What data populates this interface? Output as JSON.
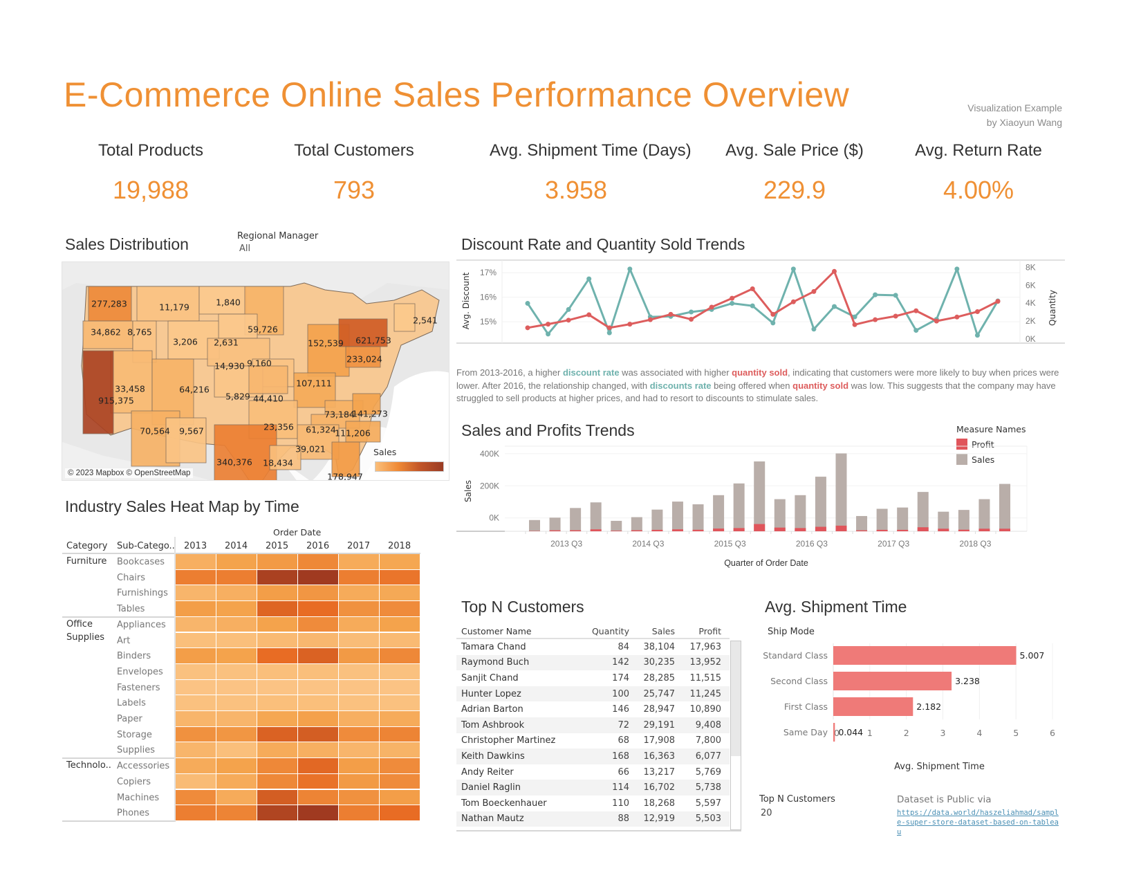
{
  "header": {
    "title": "E-Commerce Online Sales Performance Overview",
    "credit_line1": "Visualization Example",
    "credit_line2": "by Xiaoyun Wang"
  },
  "kpis": [
    {
      "label": "Total Products",
      "value": "19,988"
    },
    {
      "label": "Total Customers",
      "value": "793"
    },
    {
      "label": "Avg. Shipment Time (Days)",
      "value": "3.958"
    },
    {
      "label": "Avg. Sale Price ($)",
      "value": "229.9"
    },
    {
      "label": "Avg. Return Rate",
      "value": "4.00%"
    }
  ],
  "colors": {
    "accent": "#ef9034",
    "teal": "#6fb2ad",
    "red": "#dd5d5d",
    "sales_bar": "#b9aea9",
    "profit_bar": "#e0555b",
    "ship_bar": "#ef7a78"
  },
  "sales_distribution": {
    "title": "Sales Distribution",
    "filter_label": "Regional Manager",
    "filter_value": "All",
    "copyright": "© 2023 Mapbox © OpenStreetMap",
    "legend_title": "Sales",
    "states": [
      {
        "label": "277,283",
        "value": 277283
      },
      {
        "label": "11,179",
        "value": 11179
      },
      {
        "label": "1,840",
        "value": 1840
      },
      {
        "label": "59,726",
        "value": 59726
      },
      {
        "label": "34,862",
        "value": 34862
      },
      {
        "label": "8,765",
        "value": 8765
      },
      {
        "label": "3,206",
        "value": 3206
      },
      {
        "label": "2,631",
        "value": 2631
      },
      {
        "label": "14,930",
        "value": 14930
      },
      {
        "label": "9,160",
        "value": 9160
      },
      {
        "label": "152,539",
        "value": 152539
      },
      {
        "label": "621,753",
        "value": 621753
      },
      {
        "label": "2,541",
        "value": 2541
      },
      {
        "label": "233,024",
        "value": 233024
      },
      {
        "label": "33,458",
        "value": 33458
      },
      {
        "label": "64,216",
        "value": 64216
      },
      {
        "label": "5,829",
        "value": 5829
      },
      {
        "label": "44,410",
        "value": 44410
      },
      {
        "label": "107,111",
        "value": 107111
      },
      {
        "label": "73,184",
        "value": 73184
      },
      {
        "label": "141,273",
        "value": 141273
      },
      {
        "label": "915,375",
        "value": 915375
      },
      {
        "label": "61,324",
        "value": 61324
      },
      {
        "label": "111,206",
        "value": 111206
      },
      {
        "label": "70,564",
        "value": 70564
      },
      {
        "label": "9,567",
        "value": 9567
      },
      {
        "label": "23,356",
        "value": 23356
      },
      {
        "label": "39,021",
        "value": 39021
      },
      {
        "label": "340,376",
        "value": 340376
      },
      {
        "label": "18,434",
        "value": 18434
      },
      {
        "label": "178,947",
        "value": 178947
      }
    ]
  },
  "heatmap": {
    "title": "Industry Sales Heat Map by Time",
    "column_group": "Order Date",
    "col_header_category": "Category",
    "col_header_subcategory": "Sub-Catego..",
    "years": [
      "2013",
      "2014",
      "2015",
      "2016",
      "2017",
      "2018"
    ],
    "categories": [
      {
        "name": "Furniture",
        "rows": [
          {
            "sub": "Bookcases",
            "levels": [
              0.25,
              0.35,
              0.4,
              0.5,
              0.28,
              0.32
            ]
          },
          {
            "sub": "Chairs",
            "levels": [
              0.55,
              0.55,
              0.95,
              1.0,
              0.55,
              0.6
            ]
          },
          {
            "sub": "Furnishings",
            "levels": [
              0.2,
              0.25,
              0.38,
              0.42,
              0.28,
              0.3
            ]
          },
          {
            "sub": "Tables",
            "levels": [
              0.38,
              0.35,
              0.7,
              0.65,
              0.45,
              0.48
            ]
          }
        ]
      },
      {
        "name": "Office Supplies",
        "rows": [
          {
            "sub": "Appliances",
            "levels": [
              0.2,
              0.25,
              0.35,
              0.48,
              0.28,
              0.35
            ]
          },
          {
            "sub": "Art",
            "levels": [
              0.12,
              0.12,
              0.16,
              0.18,
              0.14,
              0.16
            ]
          },
          {
            "sub": "Binders",
            "levels": [
              0.38,
              0.35,
              0.65,
              0.72,
              0.4,
              0.5
            ]
          },
          {
            "sub": "Envelopes",
            "levels": [
              0.1,
              0.1,
              0.12,
              0.12,
              0.1,
              0.1
            ]
          },
          {
            "sub": "Fasteners",
            "levels": [
              0.08,
              0.08,
              0.08,
              0.08,
              0.08,
              0.08
            ]
          },
          {
            "sub": "Labels",
            "levels": [
              0.1,
              0.1,
              0.12,
              0.12,
              0.1,
              0.1
            ]
          },
          {
            "sub": "Paper",
            "levels": [
              0.2,
              0.2,
              0.32,
              0.36,
              0.25,
              0.28
            ]
          },
          {
            "sub": "Storage",
            "levels": [
              0.45,
              0.42,
              0.72,
              0.75,
              0.48,
              0.52
            ]
          },
          {
            "sub": "Supplies",
            "levels": [
              0.2,
              0.12,
              0.28,
              0.25,
              0.2,
              0.22
            ]
          }
        ]
      },
      {
        "name": "Technolo..",
        "rows": [
          {
            "sub": "Accessories",
            "levels": [
              0.28,
              0.35,
              0.5,
              0.68,
              0.38,
              0.48
            ]
          },
          {
            "sub": "Copiers",
            "levels": [
              0.15,
              0.28,
              0.5,
              0.62,
              0.4,
              0.48
            ]
          },
          {
            "sub": "Machines",
            "levels": [
              0.48,
              0.28,
              0.75,
              0.52,
              0.45,
              0.38
            ]
          },
          {
            "sub": "Phones",
            "levels": [
              0.55,
              0.52,
              0.92,
              1.0,
              0.55,
              0.65
            ]
          }
        ]
      }
    ]
  },
  "chart_data": [
    {
      "type": "line",
      "title": "Discount Rate and Quantity Sold Trends",
      "x": [
        "2013 Q1",
        "2013 Q2",
        "2013 Q3",
        "2013 Q4",
        "2014 Q1",
        "2014 Q2",
        "2014 Q3",
        "2014 Q4",
        "2015 Q1",
        "2015 Q2",
        "2015 Q3",
        "2015 Q4",
        "2016 Q1",
        "2016 Q2",
        "2016 Q3",
        "2016 Q4",
        "2017 Q1",
        "2017 Q2",
        "2017 Q3",
        "2017 Q4",
        "2018 Q1",
        "2018 Q2",
        "2018 Q3",
        "2018 Q4"
      ],
      "ylabel": "Avg. Discount",
      "y2label": "Quantity",
      "yticks": [
        "15%",
        "16%",
        "17%"
      ],
      "y2ticks": [
        "0K",
        "2K",
        "4K",
        "6K",
        "8K"
      ],
      "ylim": [
        14.3,
        17.4
      ],
      "y2lim": [
        0,
        8500
      ],
      "series": [
        {
          "name": "Avg. Discount",
          "axis": "left",
          "color": "#6fb2ad",
          "values": [
            15.75,
            14.5,
            15.5,
            16.75,
            14.55,
            17.15,
            15.2,
            15.22,
            15.4,
            15.5,
            15.75,
            15.65,
            14.95,
            17.15,
            14.7,
            15.62,
            15.2,
            16.1,
            16.08,
            14.65,
            15.1,
            17.15,
            14.45,
            15.85
          ]
        },
        {
          "name": "Quantity",
          "axis": "right",
          "color": "#dd5d5d",
          "values": [
            1250,
            1650,
            2100,
            2700,
            1250,
            1650,
            2150,
            2750,
            2200,
            3550,
            4550,
            5600,
            2750,
            4150,
            5300,
            7550,
            1600,
            2150,
            2550,
            3150,
            2000,
            2450,
            3050,
            4200
          ]
        }
      ],
      "annotation": {
        "p1": "From 2013-2016, a higher ",
        "h1": "discount rate",
        "p2": " was associated with higher ",
        "h2": "quantity sold",
        "p3": ", indicating that customers were more likely to buy when prices were lower. After 2016, the relationship changed, with ",
        "h3": "discounts rate",
        "p4": " being offered when ",
        "h4": "quantity sold",
        "p5": " was low. This suggests that the company may have struggled to sell products at higher prices, and had to resort to discounts to stimulate sales."
      }
    },
    {
      "type": "bar",
      "title": "Sales and Profits Trends",
      "xlabel": "Quarter of Order Date",
      "ylabel": "Sales",
      "xticks": [
        "2013 Q3",
        "2014 Q3",
        "2015 Q3",
        "2016 Q3",
        "2017 Q3",
        "2018 Q3"
      ],
      "yticks": [
        "0K",
        "200K",
        "400K"
      ],
      "ylim": [
        -40000,
        490000
      ],
      "legend_title": "Measure Names",
      "legend": [
        "Profit",
        "Sales"
      ],
      "legend_position": "top-right",
      "categories": [
        "2013 Q1",
        "2013 Q2",
        "2013 Q3",
        "2013 Q4",
        "2014 Q1",
        "2014 Q2",
        "2014 Q3",
        "2014 Q4",
        "2015 Q1",
        "2015 Q2",
        "2015 Q3",
        "2015 Q4",
        "2016 Q1",
        "2016 Q2",
        "2016 Q3",
        "2016 Q4",
        "2017 Q1",
        "2017 Q2",
        "2017 Q3",
        "2017 Q4",
        "2018 Q1",
        "2018 Q2",
        "2018 Q3",
        "2018 Q4"
      ],
      "series": [
        {
          "name": "Sales",
          "values": [
            30000,
            45000,
            105000,
            140000,
            25000,
            48000,
            95000,
            145000,
            128000,
            185000,
            258000,
            395000,
            160000,
            185000,
            300000,
            445000,
            55000,
            100000,
            108000,
            205000,
            82000,
            93000,
            160000,
            255000
          ]
        },
        {
          "name": "Profit",
          "values": [
            2000,
            6000,
            6500,
            12000,
            3500,
            6500,
            9000,
            12000,
            9500,
            17000,
            20000,
            45000,
            23000,
            20000,
            28000,
            35000,
            6000,
            9000,
            9000,
            25000,
            16000,
            10000,
            16000,
            16000
          ]
        }
      ]
    },
    {
      "type": "bar",
      "orientation": "horizontal",
      "title": "Avg. Shipment Time",
      "ylabel": "Ship Mode",
      "xlabel": "Avg. Shipment Time",
      "categories": [
        "Standard Class",
        "Second Class",
        "First Class",
        "Same Day"
      ],
      "values": [
        5.007,
        3.238,
        2.182,
        0.044
      ],
      "labels": [
        "5.007",
        "3.238",
        "2.182",
        "0.044"
      ],
      "xticks": [
        "0",
        "1",
        "2",
        "3",
        "4",
        "5",
        "6"
      ],
      "xlim": [
        0,
        6
      ]
    }
  ],
  "top_customers": {
    "title": "Top N Customers",
    "columns": [
      "Customer Name",
      "Quantity",
      "Sales",
      "Profit"
    ],
    "rows": [
      [
        "Tamara Chand",
        "84",
        "38,104",
        "17,963"
      ],
      [
        "Raymond Buch",
        "142",
        "30,235",
        "13,952"
      ],
      [
        "Sanjit Chand",
        "174",
        "28,285",
        "11,515"
      ],
      [
        "Hunter Lopez",
        "100",
        "25,747",
        "11,245"
      ],
      [
        "Adrian Barton",
        "146",
        "28,947",
        "10,890"
      ],
      [
        "Tom Ashbrook",
        "72",
        "29,191",
        "9,408"
      ],
      [
        "Christopher Martinez",
        "68",
        "17,908",
        "7,800"
      ],
      [
        "Keith Dawkins",
        "168",
        "16,363",
        "6,077"
      ],
      [
        "Andy Reiter",
        "66",
        "13,217",
        "5,769"
      ],
      [
        "Daniel Raglin",
        "114",
        "16,702",
        "5,738"
      ],
      [
        "Tom Boeckenhauer",
        "110",
        "18,268",
        "5,597"
      ],
      [
        "Nathan Mautz",
        "88",
        "12,919",
        "5,503"
      ]
    ]
  },
  "footer": {
    "topn_label": "Top N Customers",
    "topn_value": "20",
    "dataset_label": "Dataset is Public via",
    "dataset_link": "https://data.world/haszeliahmad/sample-super-store-dataset-based-on-tableau"
  }
}
